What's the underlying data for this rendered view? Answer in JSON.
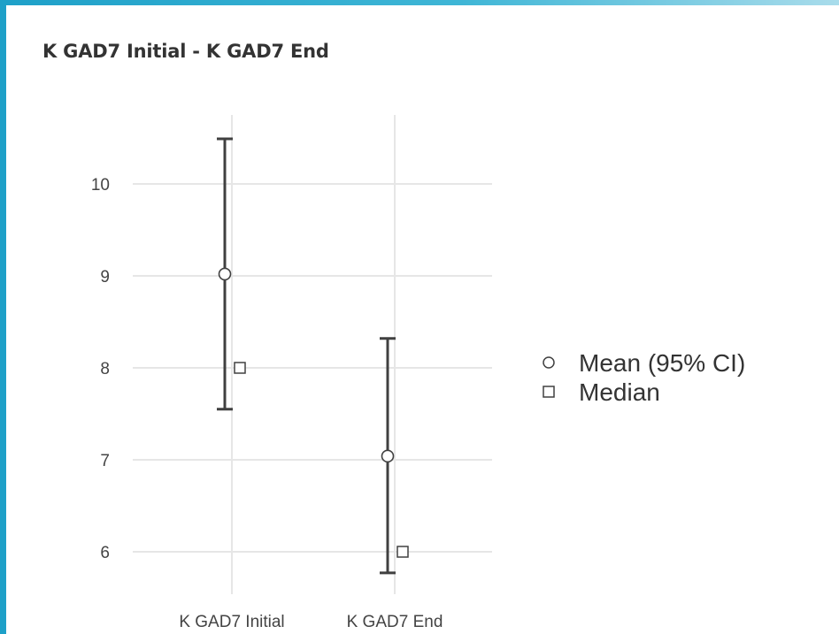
{
  "chart_data": {
    "type": "errorbar",
    "title": "K GAD7 Initial - K GAD7 End",
    "xlabel": "",
    "ylabel": "",
    "categories": [
      "K GAD7 Initial",
      "K GAD7 End"
    ],
    "series": [
      {
        "name": "Mean (95% CI)",
        "marker": "circle",
        "values": [
          9.02,
          7.04
        ],
        "ci_lower": [
          7.55,
          5.77
        ],
        "ci_upper": [
          10.49,
          8.32
        ]
      },
      {
        "name": "Median",
        "marker": "square",
        "values": [
          8,
          6
        ]
      }
    ],
    "y_ticks": [
      6,
      7,
      8,
      9,
      10
    ],
    "ylim": [
      5.5,
      10.75
    ],
    "grid": true,
    "legend_position": "right"
  },
  "colors": {
    "accent": "#1ea0c8",
    "grid": "#e6e6e6",
    "marks": "#404040"
  }
}
